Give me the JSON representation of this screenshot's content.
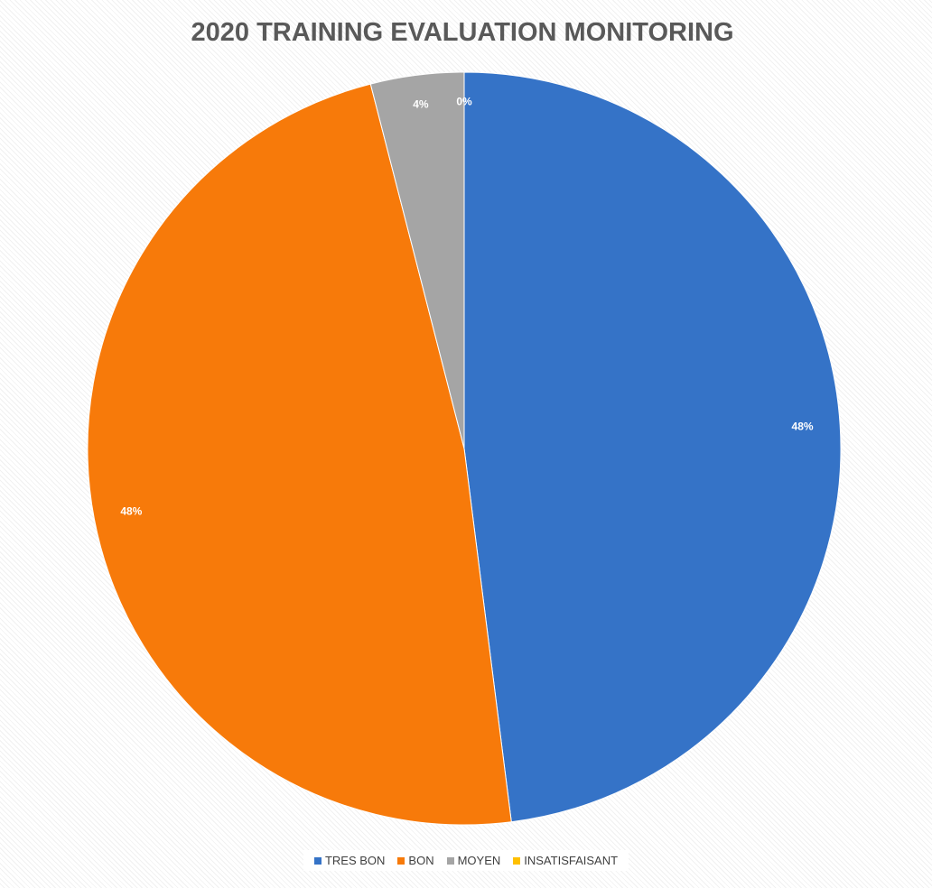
{
  "chart_data": {
    "type": "pie",
    "title": "2020 TRAINING EVALUATION MONITORING",
    "categories": [
      "TRES BON",
      "BON",
      "MOYEN",
      "INSATISFAISANT"
    ],
    "values": [
      48,
      48,
      4,
      0
    ],
    "value_labels": [
      "48%",
      "48%",
      "4%",
      "0%"
    ],
    "colors": [
      "#3573c7",
      "#f77a0a",
      "#a5a5a5",
      "#ffc000"
    ],
    "legend": "bottom"
  }
}
